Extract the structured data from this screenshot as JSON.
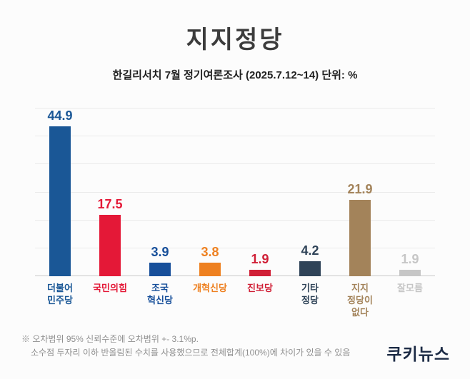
{
  "header": {
    "title": "지지정당",
    "subtitle": "한길리서치 7월 정기여론조사 (2025.7.12~14) 단위: %"
  },
  "chart_data": {
    "type": "bar",
    "title": "지지정당",
    "subtitle": "한길리서치 7월 정기여론조사 (2025.7.12~14) 단위: %",
    "unit": "%",
    "categories": [
      "더불어\n민주당",
      "국민의힘",
      "조국\n혁신당",
      "개혁신당",
      "진보당",
      "기타\n정당",
      "지지\n정당이\n없다",
      "잘모름"
    ],
    "values": [
      44.9,
      17.5,
      3.9,
      3.8,
      1.9,
      4.2,
      21.9,
      1.9
    ],
    "colors": [
      "#1a5796",
      "#e41837",
      "#174f9a",
      "#ee8020",
      "#d01f36",
      "#2f4358",
      "#a3835a",
      "#c6c6c6"
    ],
    "ylim": [
      0,
      48
    ],
    "grid_divisions": 6,
    "grid": true,
    "legend": "none",
    "xlabel": "",
    "ylabel": ""
  },
  "footer": {
    "note_line1": "※ 오차범위 95% 신뢰수준에 오차범위 +- 3.1%p.",
    "note_line2": "소수점 두자리 이하 반올림된 수치를 사용했으므로 전체합계(100%)에 차이가 있을 수 있음",
    "logo": "쿠키뉴스"
  }
}
